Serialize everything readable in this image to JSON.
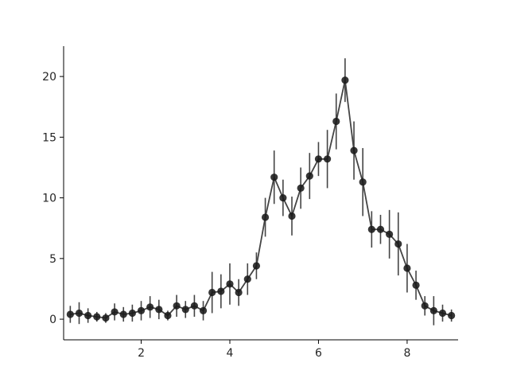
{
  "chart_data": {
    "type": "scatter",
    "title": "",
    "xlabel": "",
    "ylabel": "",
    "xlim": [
      0.25,
      9.15
    ],
    "ylim": [
      -1.7,
      22.5
    ],
    "x_ticks": [
      2,
      4,
      6,
      8
    ],
    "y_ticks": [
      0,
      5,
      10,
      15,
      20
    ],
    "x_tick_labels": [
      "2",
      "4",
      "6",
      "8"
    ],
    "y_tick_labels": [
      "0",
      "5",
      "10",
      "15",
      "20"
    ],
    "grid": false,
    "legend": "none",
    "marker_color": "#1a1a1a",
    "line_color": "#444444",
    "series": [
      {
        "x": [
          0.4,
          0.6,
          0.8,
          1.0,
          1.2,
          1.4,
          1.6,
          1.8,
          2.0,
          2.2,
          2.4,
          2.6,
          2.8,
          3.0,
          3.2,
          3.4,
          3.6,
          3.8,
          4.0,
          4.2,
          4.4,
          4.6,
          4.8,
          5.0,
          5.2,
          5.4,
          5.6,
          5.8,
          6.0,
          6.2,
          6.4,
          6.6,
          6.8,
          7.0,
          7.2,
          7.4,
          7.6,
          7.8,
          8.0,
          8.2,
          8.4,
          8.6,
          8.8,
          9.0
        ],
        "y": [
          0.4,
          0.5,
          0.3,
          0.2,
          0.1,
          0.6,
          0.4,
          0.5,
          0.7,
          1.0,
          0.8,
          0.3,
          1.1,
          0.8,
          1.1,
          0.7,
          2.2,
          2.3,
          2.9,
          2.2,
          3.3,
          4.4,
          8.4,
          11.7,
          10.0,
          8.5,
          10.8,
          11.8,
          13.2,
          13.2,
          16.3,
          19.7,
          13.9,
          11.3,
          7.4,
          7.4,
          7.0,
          6.2,
          4.2,
          2.8,
          1.1,
          0.7,
          0.5,
          0.3
        ],
        "yerr": [
          0.7,
          0.9,
          0.6,
          0.4,
          0.4,
          0.7,
          0.6,
          0.7,
          0.8,
          0.9,
          0.8,
          0.4,
          0.9,
          0.7,
          0.9,
          0.8,
          1.7,
          1.4,
          1.7,
          1.1,
          1.3,
          1.1,
          1.6,
          2.2,
          1.5,
          1.6,
          1.7,
          1.9,
          1.4,
          2.4,
          2.3,
          1.8,
          2.4,
          2.8,
          1.5,
          1.2,
          2.0,
          2.6,
          2.0,
          1.2,
          0.8,
          1.2,
          0.7,
          0.5
        ]
      }
    ]
  }
}
